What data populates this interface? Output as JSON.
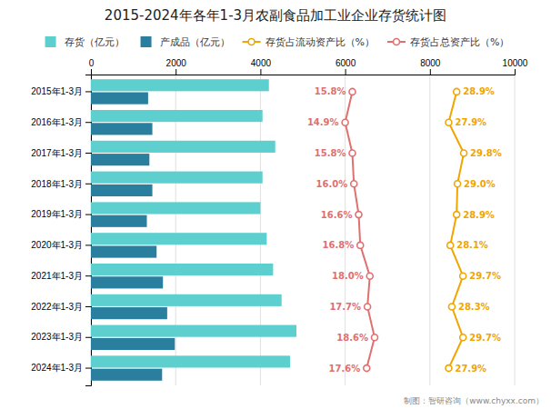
{
  "chart_data": {
    "type": "bar",
    "orientation": "horizontal",
    "title": "2015-2024年各年1-3月农副食品加工业企业存货统计图",
    "categories": [
      "2015年1-3月",
      "2016年1-3月",
      "2017年1-3月",
      "2018年1-3月",
      "2019年1-3月",
      "2020年1-3月",
      "2021年1-3月",
      "2022年1-3月",
      "2023年1-3月",
      "2024年1-3月"
    ],
    "series": [
      {
        "name": "存货（亿元）",
        "type": "bar",
        "color": "#5ECFCF",
        "values": [
          4200,
          4050,
          4350,
          4050,
          4000,
          4150,
          4300,
          4500,
          4850,
          4700
        ]
      },
      {
        "name": "产成品（亿元）",
        "type": "bar",
        "color": "#2A7F9F",
        "values": [
          1350,
          1450,
          1380,
          1450,
          1320,
          1550,
          1700,
          1800,
          1980,
          1680
        ]
      },
      {
        "name": "存货占流动资产比（%）",
        "type": "line",
        "color": "#F0A500",
        "marker": "circle",
        "line_style": "solid",
        "values": [
          28.9,
          27.9,
          29.8,
          29.0,
          28.9,
          28.1,
          29.7,
          28.3,
          29.7,
          27.9
        ],
        "value_labels": [
          "28.9%",
          "27.9%",
          "29.8%",
          "29.0%",
          "28.9%",
          "28.1%",
          "29.7%",
          "28.3%",
          "29.7%",
          "27.9%"
        ]
      },
      {
        "name": "存货占总资产比（%）",
        "type": "line",
        "color": "#E07070",
        "marker": "circle",
        "line_style": "solid",
        "values": [
          15.8,
          14.9,
          15.8,
          16.0,
          16.6,
          16.8,
          18.0,
          17.7,
          18.6,
          17.6
        ],
        "value_labels": [
          "15.8%",
          "14.9%",
          "15.8%",
          "16.0%",
          "16.6%",
          "16.8%",
          "18.0%",
          "17.7%",
          "18.6%",
          "17.6%"
        ]
      }
    ],
    "xlim": [
      0,
      10000
    ],
    "xticks": [
      0,
      2000,
      4000,
      6000,
      8000,
      10000
    ],
    "grid": true,
    "legend": "top",
    "data_labels": true,
    "annotations": [
      "制图：智研咨询（www.chyxx.com）"
    ]
  }
}
